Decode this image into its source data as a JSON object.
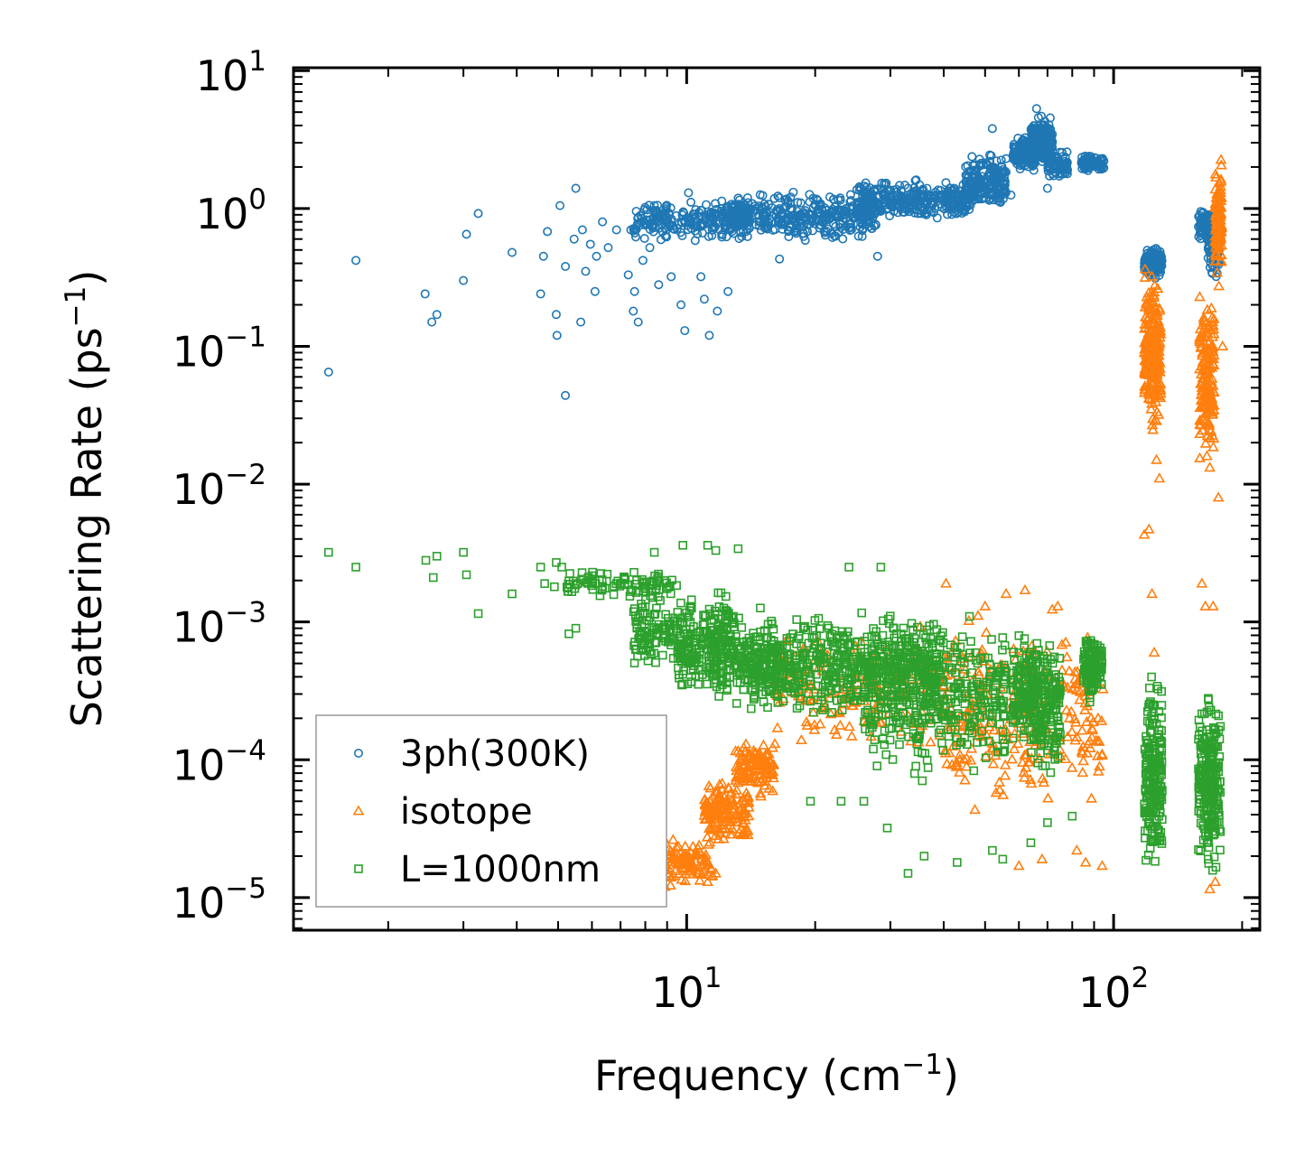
{
  "chart_data": {
    "type": "scatter",
    "title": "",
    "xlabel": "Frequency (cm",
    "xlabel_sup": "−1",
    "xlabel_end": ")",
    "ylabel": "Scattering Rate (ps",
    "ylabel_sup": "−1",
    "ylabel_end": ")",
    "xscale": "log",
    "yscale": "log",
    "xlim": [
      1.2,
      220
    ],
    "ylim": [
      5.8e-06,
      10.5
    ],
    "legend_position": "lower-left",
    "x_ticks": [
      {
        "base": "10",
        "exp": "1",
        "value": 10
      },
      {
        "base": "10",
        "exp": "2",
        "value": 100
      }
    ],
    "y_ticks": [
      {
        "base": "10",
        "exp": "1",
        "value": 10
      },
      {
        "base": "10",
        "exp": "0",
        "value": 1
      },
      {
        "base": "10",
        "exp": "−1",
        "value": 0.1
      },
      {
        "base": "10",
        "exp": "−2",
        "value": 0.01
      },
      {
        "base": "10",
        "exp": "−3",
        "value": 0.001
      },
      {
        "base": "10",
        "exp": "−4",
        "value": 0.0001
      },
      {
        "base": "10",
        "exp": "−5",
        "value": 1e-05
      }
    ],
    "series": [
      {
        "name": "3ph(300K)",
        "marker": "circle",
        "color": "#1f77b4",
        "points": [
          [
            1.45,
            0.065
          ],
          [
            1.68,
            0.42
          ],
          [
            2.44,
            0.24
          ],
          [
            2.53,
            0.15
          ],
          [
            2.6,
            0.17
          ],
          [
            3.0,
            0.3
          ],
          [
            3.05,
            0.65
          ],
          [
            3.25,
            0.92
          ],
          [
            3.9,
            0.48
          ],
          [
            4.55,
            0.24
          ],
          [
            4.62,
            0.45
          ],
          [
            4.72,
            0.68
          ],
          [
            4.95,
            0.17
          ],
          [
            4.97,
            0.12
          ],
          [
            5.05,
            1.05
          ],
          [
            5.2,
            0.044
          ],
          [
            5.2,
            0.38
          ],
          [
            5.5,
            1.4
          ],
          [
            5.45,
            0.6
          ],
          [
            5.65,
            0.15
          ],
          [
            5.8,
            0.35
          ],
          [
            5.7,
            0.7
          ],
          [
            5.95,
            0.55
          ],
          [
            6.1,
            0.25
          ],
          [
            6.15,
            0.45
          ],
          [
            6.35,
            0.8
          ],
          [
            6.55,
            0.52
          ],
          [
            6.85,
            0.7
          ],
          [
            7.3,
            0.33
          ],
          [
            7.4,
            0.7
          ],
          [
            7.5,
            0.18
          ],
          [
            7.55,
            0.25
          ],
          [
            7.7,
            0.15
          ],
          [
            7.9,
            0.42
          ],
          [
            8.2,
            0.52
          ],
          [
            8.4,
            1.05
          ],
          [
            8.6,
            0.28
          ],
          [
            9.2,
            0.32
          ],
          [
            9.7,
            0.2
          ],
          [
            9.9,
            0.13
          ],
          [
            10.1,
            1.3
          ],
          [
            10.8,
            0.32
          ],
          [
            11.0,
            0.22
          ],
          [
            11.3,
            0.12
          ],
          [
            11.8,
            0.18
          ],
          [
            12.5,
            0.25
          ],
          [
            13.3,
            1.15
          ],
          [
            14.5,
            1.0
          ],
          [
            16.5,
            0.43
          ],
          [
            28.0,
            0.45
          ],
          [
            48.0,
            1.45
          ],
          [
            52.0,
            3.8
          ],
          [
            56.0,
            2.3
          ],
          [
            57.5,
            1.25
          ],
          [
            60.0,
            2.5
          ],
          [
            66.0,
            5.3
          ],
          [
            70.0,
            1.4
          ],
          [
            78.0,
            1.9
          ]
        ],
        "clusters": [
          {
            "x": [
              7.5,
              14
            ],
            "y": [
              0.55,
              1.2
            ],
            "n": 220
          },
          {
            "x": [
              12,
              28
            ],
            "y": [
              0.55,
              1.4
            ],
            "n": 380
          },
          {
            "x": [
              25,
              46
            ],
            "y": [
              0.75,
              1.7
            ],
            "n": 330
          },
          {
            "x": [
              45,
              56
            ],
            "y": [
              0.9,
              2.8
            ],
            "n": 190
          },
          {
            "x": [
              58,
              66
            ],
            "y": [
              1.7,
              3.6
            ],
            "n": 120
          },
          {
            "x": [
              64,
              72
            ],
            "y": [
              1.8,
              5.2
            ],
            "n": 200
          },
          {
            "x": [
              70,
              78
            ],
            "y": [
              1.6,
              2.7
            ],
            "n": 80
          },
          {
            "x": [
              84,
              95
            ],
            "y": [
              1.8,
              2.5
            ],
            "n": 110
          },
          {
            "x": [
              118,
              130
            ],
            "y": [
              0.3,
              0.56
            ],
            "n": 130
          },
          {
            "x": [
              158,
              172
            ],
            "y": [
              0.55,
              1.05
            ],
            "n": 100
          },
          {
            "x": [
              166,
              177
            ],
            "y": [
              0.27,
              0.9
            ],
            "n": 80
          }
        ]
      },
      {
        "name": "isotope",
        "marker": "triangle",
        "color": "#ff7f0e",
        "points": [
          [
            8.4,
            1.05e-05
          ],
          [
            8.9,
            1.2e-05
          ],
          [
            9.2,
            1.4e-05
          ],
          [
            9.5,
            1.75e-05
          ],
          [
            11.2,
            1.3e-05
          ],
          [
            11.7,
            1.5e-05
          ],
          [
            40.5,
            0.0019
          ],
          [
            50.0,
            0.0013
          ],
          [
            56.0,
            0.0016
          ],
          [
            62.0,
            0.0017
          ],
          [
            74.0,
            0.0013
          ],
          [
            60.0,
            1.7e-05
          ],
          [
            68.0,
            1.9e-05
          ],
          [
            82.0,
            2.2e-05
          ],
          [
            86.0,
            1.8e-05
          ],
          [
            94.0,
            1.7e-05
          ],
          [
            118.0,
            0.0043
          ],
          [
            121.0,
            0.0047
          ],
          [
            126.0,
            0.015
          ],
          [
            128.0,
            0.011
          ],
          [
            123.0,
            0.0016
          ],
          [
            124.5,
            0.0006
          ],
          [
            161.0,
            0.0019
          ],
          [
            164.0,
            0.0013
          ],
          [
            171.0,
            0.0013
          ],
          [
            176.0,
            0.008
          ],
          [
            180.0,
            0.1
          ],
          [
            168.0,
            1.15e-05
          ],
          [
            173.0,
            1.3e-05
          ]
        ],
        "clusters": [
          {
            "x": [
              8.6,
              11.5
            ],
            "y": [
              1.1e-05,
              3e-05
            ],
            "n": 110
          },
          {
            "x": [
              11,
              14
            ],
            "y": [
              2.2e-05,
              8e-05
            ],
            "n": 150
          },
          {
            "x": [
              13,
              16
            ],
            "y": [
              5e-05,
              0.00016
            ],
            "n": 120
          },
          {
            "x": [
              16,
              40
            ],
            "y": [
              8e-05,
              0.0012
            ],
            "n": 170
          },
          {
            "x": [
              40,
              58
            ],
            "y": [
              3e-05,
              0.0015
            ],
            "n": 120
          },
          {
            "x": [
              58,
              78
            ],
            "y": [
              3e-05,
              0.0016
            ],
            "n": 110
          },
          {
            "x": [
              78,
              95
            ],
            "y": [
              3e-05,
              0.0012
            ],
            "n": 60
          },
          {
            "x": [
              118,
              129
            ],
            "y": [
              0.02,
              0.45
            ],
            "n": 240
          },
          {
            "x": [
              159,
              172
            ],
            "y": [
              0.012,
              0.28
            ],
            "n": 180
          },
          {
            "x": [
              173,
              179
            ],
            "y": [
              0.25,
              2.6
            ],
            "n": 120
          }
        ]
      },
      {
        "name": "L=1000nm",
        "marker": "square",
        "color": "#2ca02c",
        "points": [
          [
            1.45,
            0.0032
          ],
          [
            1.68,
            0.0025
          ],
          [
            2.45,
            0.0028
          ],
          [
            2.55,
            0.0021
          ],
          [
            2.6,
            0.003
          ],
          [
            3.0,
            0.0032
          ],
          [
            3.05,
            0.0022
          ],
          [
            3.25,
            0.00115
          ],
          [
            3.9,
            0.0016
          ],
          [
            4.55,
            0.0025
          ],
          [
            4.65,
            0.0019
          ],
          [
            4.9,
            0.0018
          ],
          [
            4.95,
            0.0027
          ],
          [
            5.1,
            0.0025
          ],
          [
            5.3,
            0.00082
          ],
          [
            5.5,
            0.0009
          ],
          [
            7.8,
            0.0008
          ],
          [
            8.4,
            0.0032
          ],
          [
            9.8,
            0.0036
          ],
          [
            11.2,
            0.0036
          ],
          [
            11.7,
            0.0033
          ],
          [
            13.2,
            0.0034
          ],
          [
            16.5,
            0.00034
          ],
          [
            24.0,
            0.0025
          ],
          [
            28.5,
            0.0025
          ],
          [
            19.5,
            5e-05
          ],
          [
            23.0,
            5e-05
          ],
          [
            26.0,
            5e-05
          ],
          [
            29.5,
            3.2e-05
          ],
          [
            33.0,
            1.5e-05
          ],
          [
            36.0,
            2e-05
          ],
          [
            43.0,
            1.8e-05
          ],
          [
            52.0,
            2.2e-05
          ],
          [
            55.0,
            1.9e-05
          ],
          [
            64.0,
            2.5e-05
          ],
          [
            70.0,
            3.5e-05
          ],
          [
            80.0,
            3.9e-05
          ]
        ],
        "clusters": [
          {
            "x": [
              5.2,
              9.5
            ],
            "y": [
              0.0014,
              0.0025
            ],
            "n": 90
          },
          {
            "x": [
              7.5,
              13
            ],
            "y": [
              0.0004,
              0.0019
            ],
            "n": 200
          },
          {
            "x": [
              9.5,
              16
            ],
            "y": [
              0.00022,
              0.0013
            ],
            "n": 250
          },
          {
            "x": [
              14,
              40
            ],
            "y": [
              0.00018,
              0.0014
            ],
            "n": 550
          },
          {
            "x": [
              26,
              56
            ],
            "y": [
              6e-05,
              0.0013
            ],
            "n": 380
          },
          {
            "x": [
              58,
              66
            ],
            "y": [
              0.0001,
              0.001
            ],
            "n": 120
          },
          {
            "x": [
              64,
              75
            ],
            "y": [
              6e-05,
              0.001
            ],
            "n": 170
          },
          {
            "x": [
              85,
              94
            ],
            "y": [
              0.00025,
              0.001
            ],
            "n": 120
          },
          {
            "x": [
              118,
              130
            ],
            "y": [
              1.2e-05,
              0.0005
            ],
            "n": 200
          },
          {
            "x": [
              158,
              178
            ],
            "y": [
              1.1e-05,
              0.00045
            ],
            "n": 240
          }
        ]
      }
    ]
  }
}
